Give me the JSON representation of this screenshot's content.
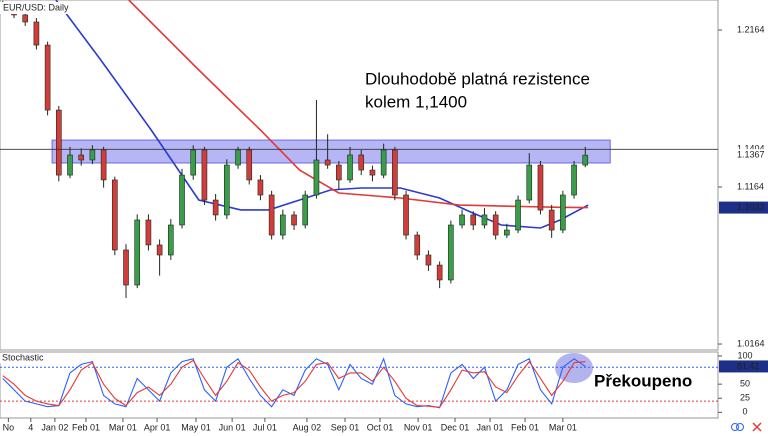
{
  "chart_data": [
    {
      "type": "candlestick",
      "title": "EUR/USD: Daily",
      "x": [
        1,
        5,
        9,
        13,
        17,
        21,
        25,
        29,
        33,
        37,
        41,
        45,
        49,
        53,
        57,
        61,
        65,
        69,
        73,
        77,
        81,
        85,
        89,
        93,
        97,
        101,
        105,
        109,
        113,
        117,
        121,
        125,
        129,
        133,
        137,
        141,
        145,
        149,
        153,
        157,
        161,
        165,
        169,
        173,
        177,
        181,
        185,
        189,
        193,
        197,
        201,
        205,
        209
      ],
      "open": [
        1.232,
        1.2291,
        1.226,
        1.2215,
        1.2068,
        1.1654,
        1.124,
        1.1368,
        1.1336,
        1.14,
        1.1209,
        1.0763,
        1.054,
        1.0954,
        1.0795,
        1.0731,
        1.0922,
        1.124,
        1.14,
        1.1081,
        1.0986,
        1.1304,
        1.14,
        1.1209,
        1.1113,
        1.0858,
        1.0986,
        1.0922,
        1.1113,
        1.1336,
        1.1304,
        1.1209,
        1.1368,
        1.1272,
        1.124,
        1.14,
        1.1113,
        1.0858,
        1.0731,
        1.0667,
        1.0572,
        1.0922,
        1.0986,
        1.0922,
        1.0986,
        1.0858,
        1.089,
        1.1081,
        1.1304,
        1.1017,
        1.089,
        1.1113,
        1.1304
      ],
      "high": [
        1.235,
        1.232,
        1.229,
        1.224,
        1.209,
        1.168,
        1.142,
        1.141,
        1.143,
        1.142,
        1.123,
        1.08,
        1.099,
        1.099,
        1.083,
        1.096,
        1.128,
        1.143,
        1.142,
        1.112,
        1.134,
        1.142,
        1.142,
        1.124,
        1.114,
        1.102,
        1.101,
        1.114,
        1.1718,
        1.15,
        1.133,
        1.142,
        1.14,
        1.13,
        1.144,
        1.142,
        1.114,
        1.088,
        1.076,
        1.069,
        1.095,
        1.102,
        1.101,
        1.103,
        1.101,
        1.093,
        1.111,
        1.138,
        1.133,
        1.105,
        1.114,
        1.133,
        1.142
      ],
      "low": [
        1.227,
        1.224,
        1.219,
        1.204,
        1.162,
        1.12,
        1.122,
        1.13,
        1.131,
        1.116,
        1.073,
        1.0457,
        1.052,
        1.076,
        1.06,
        1.07,
        1.09,
        1.121,
        1.105,
        1.095,
        1.096,
        1.128,
        1.118,
        1.108,
        1.083,
        1.083,
        1.089,
        1.09,
        1.109,
        1.128,
        1.115,
        1.119,
        1.124,
        1.12,
        1.122,
        1.108,
        1.083,
        1.07,
        1.063,
        1.052,
        1.055,
        1.09,
        1.089,
        1.09,
        1.083,
        1.084,
        1.087,
        1.106,
        1.099,
        1.084,
        1.087,
        1.109,
        1.129
      ],
      "close": [
        1.2291,
        1.226,
        1.2215,
        1.2068,
        1.1654,
        1.124,
        1.1368,
        1.1336,
        1.14,
        1.1209,
        1.0763,
        1.054,
        1.0954,
        1.0795,
        1.0731,
        1.0922,
        1.124,
        1.14,
        1.1081,
        1.0986,
        1.1304,
        1.14,
        1.1209,
        1.1113,
        1.0858,
        1.0986,
        1.0922,
        1.1113,
        1.1336,
        1.1304,
        1.1209,
        1.1368,
        1.1272,
        1.124,
        1.14,
        1.1113,
        1.0858,
        1.0731,
        1.0667,
        1.0572,
        1.0922,
        1.0986,
        1.0922,
        1.0986,
        1.0858,
        1.089,
        1.1081,
        1.1304,
        1.1017,
        1.089,
        1.1113,
        1.1304,
        1.1367
      ],
      "up_color": "#3a9d4a",
      "down_color": "#d43c3c",
      "lines": [
        {
          "color": "#2a3bd0",
          "x": [
            20,
            36,
            54,
            71,
            86,
            96,
            107,
            118,
            129,
            143,
            157,
            168,
            179,
            193,
            200,
            210
          ],
          "values": [
            1.2355,
            1.1973,
            1.1527,
            1.1081,
            1.1018,
            1.1018,
            1.1081,
            1.1145,
            1.1158,
            1.1158,
            1.1094,
            1.1005,
            1.0922,
            1.0903,
            1.0954,
            1.1049
          ]
        },
        {
          "color": "#e53935",
          "x": [
            46,
            71,
            93,
            107,
            121,
            143,
            164,
            186,
            200,
            210
          ],
          "values": [
            1.2355,
            1.1909,
            1.1527,
            1.1272,
            1.1126,
            1.1094,
            1.1049,
            1.104,
            1.1035,
            1.1033
          ]
        }
      ],
      "zone": [
        1.1317,
        1.1463
      ],
      "zone_x": [
        18.6,
        217.9
      ],
      "zone_color": "#a9a9f5",
      "hline": 1.1404,
      "xlim": [
        0,
        256.4
      ],
      "xticks": [
        {
          "value": 3,
          "label": "No"
        },
        {
          "value": 11,
          "label": "4"
        },
        {
          "value": 19.6,
          "label": "Jan 02"
        },
        {
          "value": 30.7,
          "label": "Feb 01"
        },
        {
          "value": 43.9,
          "label": "Mar 01"
        },
        {
          "value": 56.1,
          "label": "Apr 01"
        },
        {
          "value": 70,
          "label": "May 01"
        },
        {
          "value": 82.9,
          "label": "Jun 01"
        },
        {
          "value": 94.6,
          "label": "Jul 01"
        },
        {
          "value": 109.6,
          "label": "Aug 02"
        },
        {
          "value": 123.2,
          "label": "Sep 01"
        },
        {
          "value": 135.7,
          "label": "Oct 01"
        },
        {
          "value": 149.3,
          "label": "Nov 01"
        },
        {
          "value": 162.5,
          "label": "Dec 01"
        },
        {
          "value": 175,
          "label": "Jan 01"
        },
        {
          "value": 187.5,
          "label": "Feb 01"
        },
        {
          "value": 201,
          "label": "Mar 01"
        }
      ],
      "ylim": [
        1.0126,
        1.2355
      ],
      "yticks": [
        1.0164,
        1.1164,
        1.2164
      ],
      "annotation": [
        "Dlouhodobě platná rezistence",
        "kolem 1,1400"
      ]
    },
    {
      "type": "line",
      "title": "Stochastic",
      "series": [
        {
          "color": "#2962ff",
          "values": [
            60,
            40,
            20,
            15,
            10,
            12,
            70,
            85,
            90,
            30,
            15,
            10,
            60,
            40,
            20,
            70,
            90,
            95,
            40,
            20,
            80,
            95,
            60,
            30,
            10,
            40,
            30,
            75,
            95,
            85,
            40,
            85,
            60,
            50,
            95,
            30,
            15,
            10,
            12,
            8,
            70,
            85,
            60,
            80,
            20,
            40,
            85,
            95,
            40,
            15,
            80,
            95,
            81.41
          ]
        },
        {
          "color": "#e53935",
          "values": [
            65,
            50,
            30,
            20,
            15,
            12,
            40,
            75,
            88,
            50,
            25,
            12,
            35,
            45,
            30,
            50,
            80,
            92,
            60,
            30,
            55,
            88,
            75,
            45,
            20,
            30,
            35,
            55,
            85,
            88,
            60,
            70,
            70,
            55,
            80,
            55,
            25,
            12,
            11,
            9,
            40,
            75,
            70,
            72,
            45,
            35,
            65,
            90,
            60,
            30,
            55,
            88,
            90
          ]
        }
      ],
      "levels": [
        {
          "value": 80,
          "color": "#2962ff"
        },
        {
          "value": 20,
          "color": "#e53935"
        }
      ],
      "ylim": [
        -10,
        107
      ],
      "yticks": [
        100,
        50,
        25,
        0
      ],
      "annotation": "Překoupeno"
    }
  ]
}
